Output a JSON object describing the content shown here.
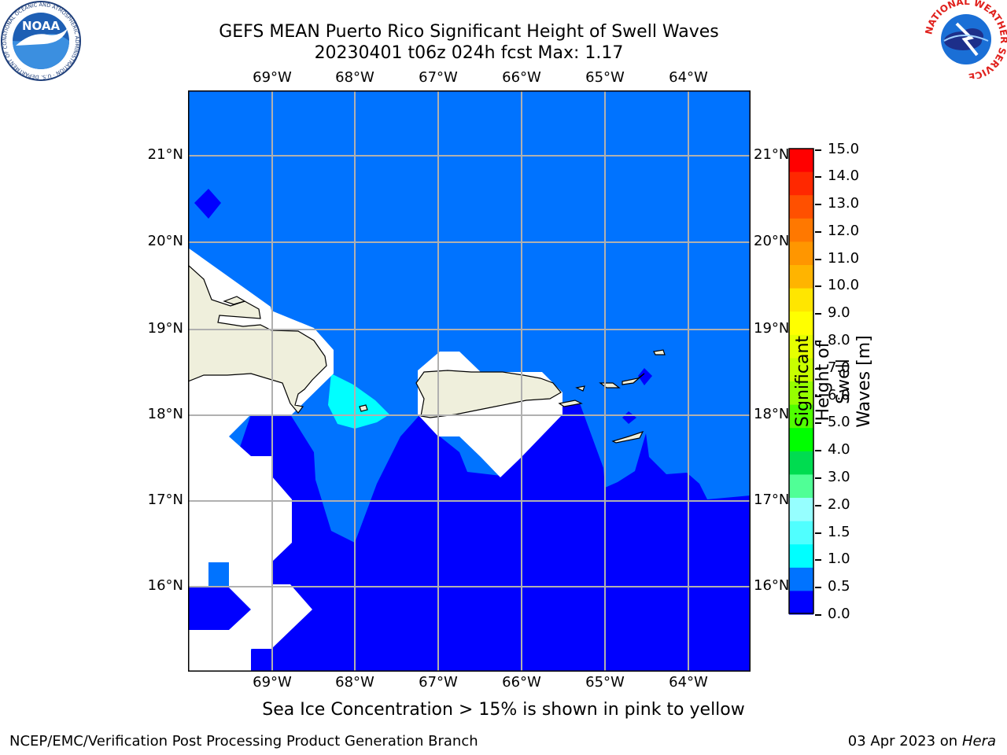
{
  "title": {
    "line1": "GEFS MEAN Puerto Rico Significant Height of Swell Waves",
    "line2": "20230401 t06z 024h fcst   Max: 1.17"
  },
  "map": {
    "lon_labels": [
      "69°W",
      "68°W",
      "67°W",
      "66°W",
      "65°W",
      "64°W"
    ],
    "lat_labels": [
      "21°N",
      "20°N",
      "19°N",
      "18°N",
      "17°N",
      "16°N"
    ],
    "colors": {
      "ocean_0_0.5": "#0000ff",
      "ocean_0.5_1.0": "#0073ff",
      "ocean_1.0_1.5": "#00ffff",
      "land": "#efefdc",
      "grid": "#b0b0b0"
    }
  },
  "colorbar": {
    "title_line1": "Significant Height of Swell",
    "title_line2": "Waves [m]",
    "ticks": [
      "15.0",
      "14.0",
      "13.0",
      "12.0",
      "11.0",
      "10.0",
      "9.0",
      "8.0",
      "7.0",
      "6.0",
      "5.0",
      "4.0",
      "3.0",
      "2.0",
      "1.5",
      "1.0",
      "0.5",
      "0.0"
    ],
    "colors": [
      "#ff0000",
      "#ff2800",
      "#ff5000",
      "#ff7800",
      "#ff9600",
      "#ffb400",
      "#ffe600",
      "#ffff00",
      "#e6ff00",
      "#c8ff00",
      "#96ff00",
      "#50ff00",
      "#00ff00",
      "#00dc50",
      "#50ff96",
      "#96ffff",
      "#50ffff",
      "#00ffff",
      "#0073ff",
      "#0000ff"
    ]
  },
  "note": "Sea Ice Concentration > 15% is shown in pink to yellow",
  "footer": {
    "left": "NCEP/EMC/Verification Post Processing Product Generation Branch",
    "right_prefix": "03 Apr 2023 on ",
    "right_host": "Hera"
  },
  "logos": {
    "noaa_text": "NOAA",
    "noaa_ring": "NATIONAL OCEANIC AND ATMOSPHERIC ADMINISTRATION · U.S. DEPARTMENT OF COMMERCE",
    "nws_ring": "NATIONAL WEATHER SERVICE"
  }
}
